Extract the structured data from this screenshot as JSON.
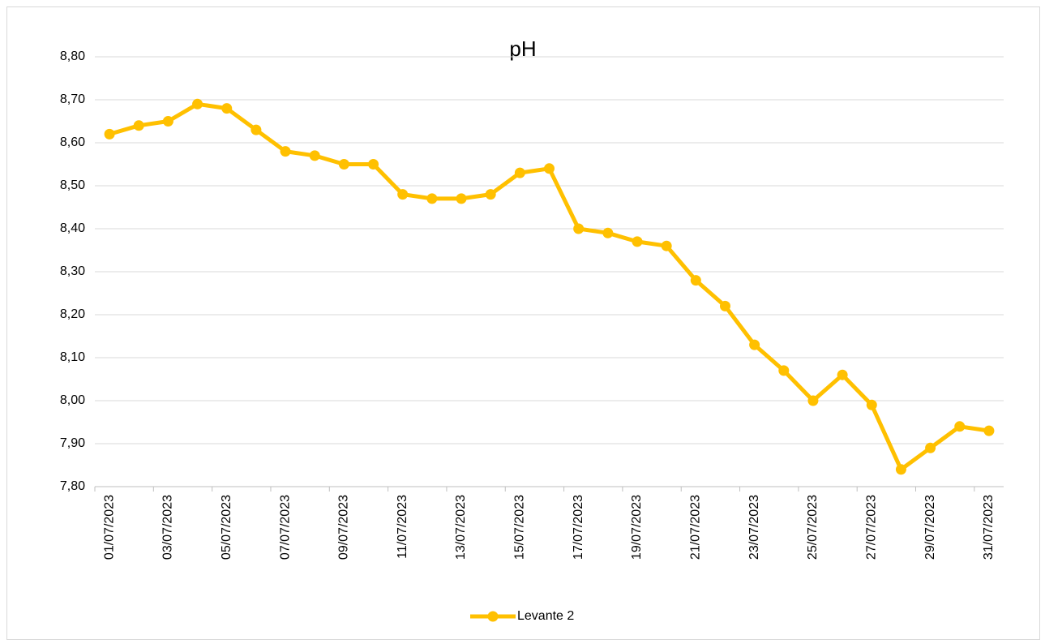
{
  "chart_data": {
    "type": "line",
    "title": "pH",
    "categories": [
      "01/07/2023",
      null,
      "03/07/2023",
      null,
      "05/07/2023",
      null,
      "07/07/2023",
      null,
      "09/07/2023",
      null,
      "11/07/2023",
      null,
      "13/07/2023",
      null,
      "15/07/2023",
      null,
      "17/07/2023",
      null,
      "19/07/2023",
      null,
      "21/07/2023",
      null,
      "23/07/2023",
      null,
      "25/07/2023",
      null,
      "27/07/2023",
      null,
      "29/07/2023",
      null,
      "31/07/2023"
    ],
    "series": [
      {
        "name": "Levante 2",
        "color": "#ffc000",
        "values": [
          8.62,
          8.64,
          8.65,
          8.69,
          8.68,
          8.63,
          8.58,
          8.57,
          8.55,
          8.55,
          8.48,
          8.47,
          8.47,
          8.48,
          8.53,
          8.54,
          8.4,
          8.39,
          8.37,
          8.36,
          8.28,
          8.22,
          8.13,
          8.07,
          8.0,
          8.06,
          7.99,
          7.84,
          7.89,
          7.94,
          7.93
        ]
      }
    ],
    "ylim": [
      7.8,
      8.8
    ],
    "yticks": [
      {
        "value": 7.8,
        "label": "7,80"
      },
      {
        "value": 7.9,
        "label": "7,90"
      },
      {
        "value": 8.0,
        "label": "8,00"
      },
      {
        "value": 8.1,
        "label": "8,10"
      },
      {
        "value": 8.2,
        "label": "8,20"
      },
      {
        "value": 8.3,
        "label": "8,30"
      },
      {
        "value": 8.4,
        "label": "8,40"
      },
      {
        "value": 8.5,
        "label": "8,50"
      },
      {
        "value": 8.6,
        "label": "8,60"
      },
      {
        "value": 8.7,
        "label": "8,70"
      },
      {
        "value": 8.8,
        "label": "8,80"
      }
    ],
    "grid": true,
    "legend": "bottom"
  }
}
